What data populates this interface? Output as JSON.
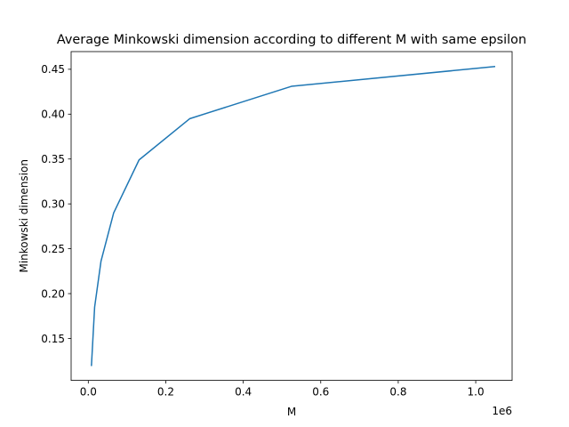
{
  "chart_data": {
    "type": "line",
    "title": "Average Minkowski dimension according to different M with same epsilon",
    "xlabel": "M",
    "ylabel": "Minkowski dimension",
    "x_offset_label": "1e6",
    "x_multiplier": 1000000,
    "xlim": [
      -0.0443,
      1.0939
    ],
    "ylim": [
      0.1033,
      0.4697
    ],
    "x_ticks": [
      0.0,
      0.2,
      0.4,
      0.6,
      0.8,
      1.0
    ],
    "x_tick_labels": [
      "0.0",
      "0.2",
      "0.4",
      "0.6",
      "0.8",
      "1.0"
    ],
    "y_ticks": [
      0.15,
      0.2,
      0.25,
      0.3,
      0.35,
      0.4,
      0.45
    ],
    "y_tick_labels": [
      "0.15",
      "0.20",
      "0.25",
      "0.30",
      "0.35",
      "0.40",
      "0.45"
    ],
    "grid": false,
    "series": [
      {
        "color": "#1f77b4",
        "x": [
          8192,
          16384,
          32768,
          65536,
          131072,
          262144,
          524288,
          1048576
        ],
        "y": [
          0.12,
          0.185,
          0.236,
          0.29,
          0.349,
          0.395,
          0.431,
          0.453
        ]
      }
    ]
  }
}
